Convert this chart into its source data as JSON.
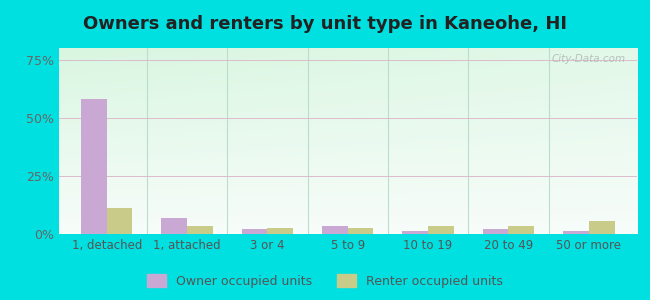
{
  "title": "Owners and renters by unit type in Kaneohe, HI",
  "categories": [
    "1, detached",
    "1, attached",
    "3 or 4",
    "5 to 9",
    "10 to 19",
    "20 to 49",
    "50 or more"
  ],
  "owner_values": [
    58.0,
    7.0,
    2.0,
    3.5,
    1.2,
    2.0,
    1.2
  ],
  "renter_values": [
    11.0,
    3.5,
    2.5,
    2.5,
    3.5,
    3.5,
    5.5
  ],
  "owner_color": "#c9a8d4",
  "renter_color": "#c8cc88",
  "ylim": [
    0,
    80
  ],
  "yticks": [
    0,
    25,
    50,
    75
  ],
  "ytick_labels": [
    "0%",
    "25%",
    "50%",
    "75%"
  ],
  "plot_bg_top_left": "#d4ede0",
  "plot_bg_bottom_right": "#eefaf0",
  "outer_background": "#00e0e0",
  "title_fontsize": 13,
  "legend_owner": "Owner occupied units",
  "legend_renter": "Renter occupied units",
  "watermark": "City-Data.com",
  "grid_color": "#ddbbcc",
  "separator_color": "#bbddcc"
}
